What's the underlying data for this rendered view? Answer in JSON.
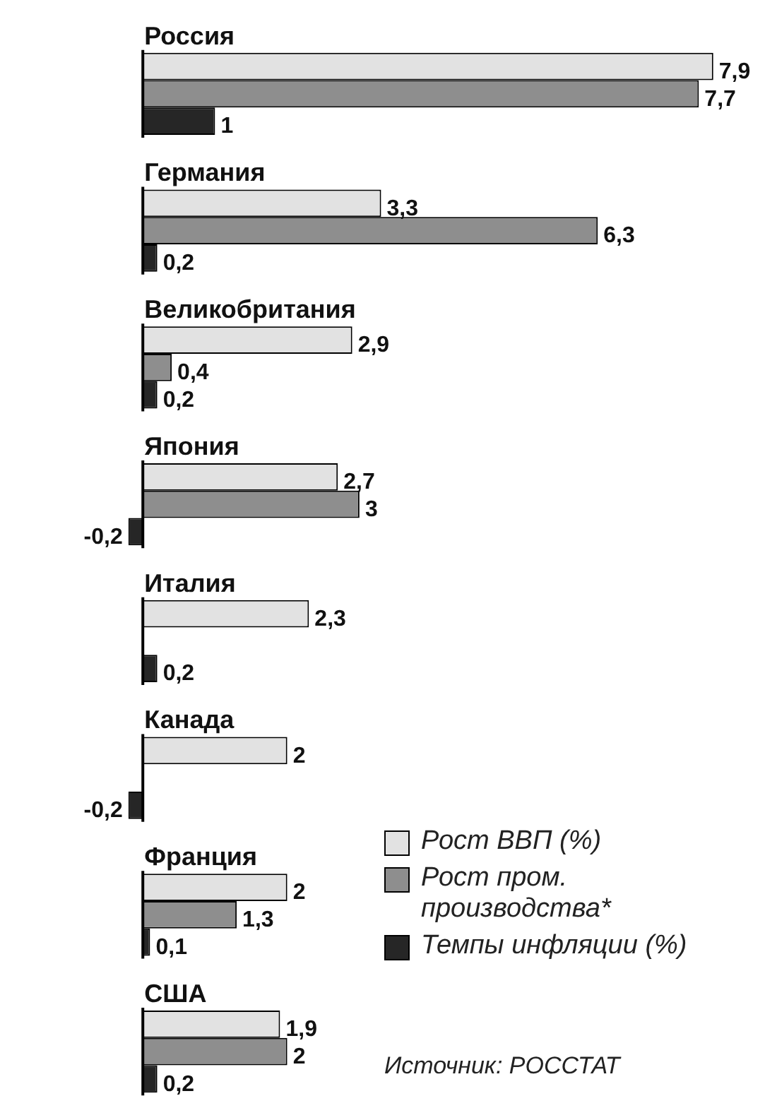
{
  "chart_data": {
    "type": "bar",
    "orientation": "horizontal",
    "categories": [
      "Россия",
      "Германия",
      "Великобритания",
      "Япония",
      "Италия",
      "Канада",
      "Франция",
      "США"
    ],
    "series": [
      {
        "name": "Рост ВВП (%)",
        "color": "#e2e2e2",
        "values": [
          7.9,
          3.3,
          2.9,
          2.7,
          2.3,
          2,
          2,
          1.9
        ],
        "value_labels": [
          "7,9",
          "3,3",
          "2,9",
          "2,7",
          "2,3",
          "2",
          "2",
          "1,9"
        ]
      },
      {
        "name": "Рост пром. производства*",
        "color": "#8e8e8e",
        "values": [
          7.7,
          6.3,
          0.4,
          3,
          null,
          null,
          1.3,
          2
        ],
        "value_labels": [
          "7,7",
          "6,3",
          "0,4",
          "3",
          null,
          null,
          "1,3",
          "2"
        ]
      },
      {
        "name": "Темпы инфляции (%)",
        "color": "#262626",
        "values": [
          1,
          0.2,
          0.2,
          -0.2,
          0.2,
          -0.2,
          0.1,
          0.2
        ],
        "value_labels": [
          "1",
          "0,2",
          "0,2",
          "-0,2",
          "0,2",
          "-0,2",
          "0,1",
          "0,2"
        ]
      }
    ],
    "tick_labels": false,
    "legend": "bottom right",
    "annotations": [
      "Источник: РОССТАТ"
    ]
  }
}
